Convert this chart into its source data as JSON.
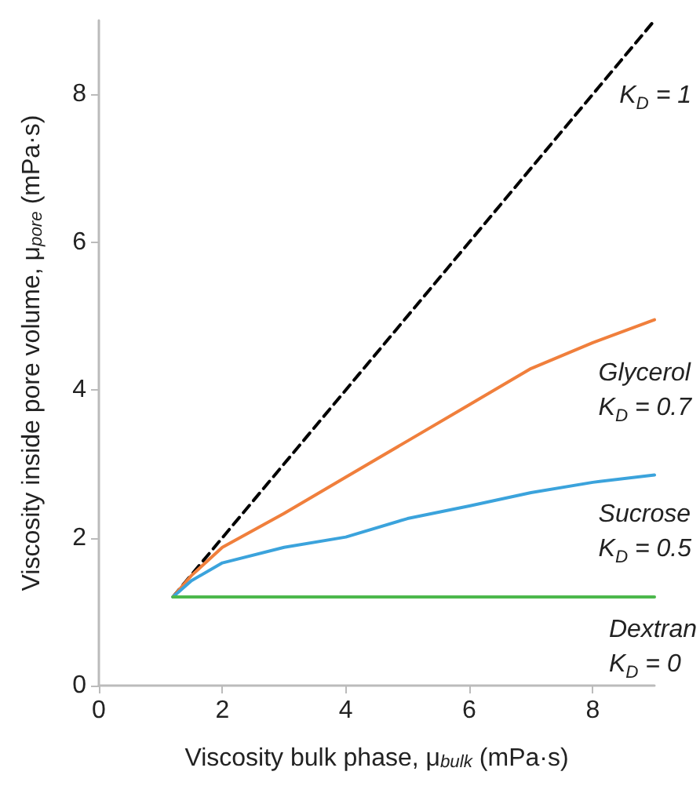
{
  "chart_data": {
    "type": "line",
    "xlabel": "Viscosity bulk phase, μ$_{bulk}$ (mPa·s)",
    "ylabel": "Viscosity inside pore volume, μ$_{pore}$ (mPa·s)",
    "xlim": [
      0,
      9
    ],
    "ylim": [
      0,
      9
    ],
    "xticks": [
      0,
      2,
      4,
      6,
      8
    ],
    "yticks": [
      0,
      2,
      4,
      6,
      8
    ],
    "grid": false,
    "marker": "none",
    "series": [
      {
        "color": "#000000",
        "line_style": "dashed",
        "x": [
          1.2,
          9
        ],
        "values": [
          1.2,
          9
        ]
      },
      {
        "color": "#f07f3c",
        "line_style": "solid",
        "x": [
          1.2,
          1.5,
          2,
          3,
          4,
          5,
          6,
          7,
          8,
          9
        ],
        "values": [
          1.2,
          1.49,
          1.87,
          2.33,
          2.82,
          3.31,
          3.8,
          4.29,
          4.64,
          4.95
        ]
      },
      {
        "color": "#3ba3dc",
        "line_style": "solid",
        "x": [
          1.2,
          1.5,
          2,
          3,
          4,
          5,
          6,
          7,
          8,
          9
        ],
        "values": [
          1.2,
          1.42,
          1.66,
          1.87,
          2.01,
          2.26,
          2.43,
          2.61,
          2.75,
          2.85
        ]
      },
      {
        "color": "#4cb84c",
        "line_style": "solid",
        "x": [
          1.2,
          9
        ],
        "values": [
          1.2,
          1.2
        ]
      }
    ],
    "annotations": [
      "K$_{D}$ = 1",
      "Glycerol\nK$_{D}$ = 0.7",
      "Sucrose\nK$_{D}$ = 0.5",
      "Dextran\nK$_{D}$ = 0"
    ]
  }
}
